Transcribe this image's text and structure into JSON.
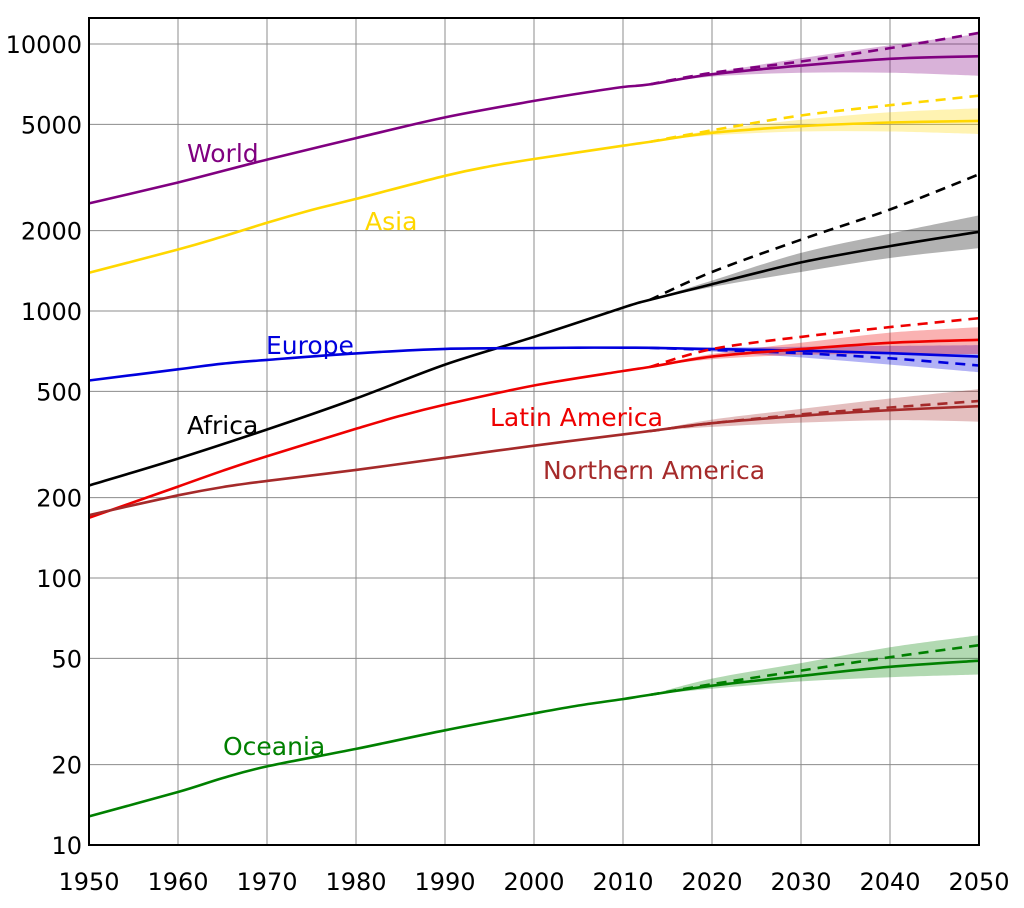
{
  "chart_data": {
    "type": "line",
    "title": "",
    "xlabel": "",
    "ylabel": "",
    "yscale": "log",
    "xlim": [
      1950,
      2050
    ],
    "ylim": [
      10,
      13000
    ],
    "grid": true,
    "legend": "inline labels",
    "x_ticks": [
      "1950",
      "1960",
      "1970",
      "1980",
      "1990",
      "2000",
      "2010",
      "2020",
      "2030",
      "2040",
      "2050"
    ],
    "y_ticks": [
      {
        "value": 10,
        "label": "10"
      },
      {
        "value": 20,
        "label": "20"
      },
      {
        "value": 50,
        "label": "50"
      },
      {
        "value": 100,
        "label": "100"
      },
      {
        "value": 200,
        "label": "200"
      },
      {
        "value": 500,
        "label": "500"
      },
      {
        "value": 1000,
        "label": "1000"
      },
      {
        "value": 2000,
        "label": "2000"
      },
      {
        "value": 5000,
        "label": "5000"
      },
      {
        "value": 10000,
        "label": "10000"
      }
    ],
    "series": [
      {
        "name": "World",
        "color": "#800080",
        "x": [
          1950,
          1960,
          1970,
          1980,
          1990,
          2000,
          2005,
          2010,
          2013
        ],
        "values": [
          2530,
          3030,
          3690,
          4440,
          5310,
          6120,
          6520,
          6900,
          7060
        ],
        "projection_x": [
          2013,
          2020,
          2030,
          2040,
          2050
        ],
        "projection_median": [
          7060,
          7700,
          8300,
          8800,
          9000
        ],
        "projection_high": [
          7060,
          7800,
          8850,
          9900,
          10900
        ],
        "projection_low": [
          7060,
          7550,
          7800,
          7800,
          7600
        ],
        "projection_dashed": [
          7060,
          7800,
          8600,
          9650,
          11000
        ]
      },
      {
        "name": "Asia",
        "color": "#ffd700",
        "x": [
          1950,
          1960,
          1965,
          1970,
          1975,
          1980,
          1990,
          1995,
          2000,
          2010,
          2013
        ],
        "values": [
          1390,
          1700,
          1900,
          2140,
          2390,
          2630,
          3210,
          3480,
          3710,
          4160,
          4300
        ],
        "projection_x": [
          2013,
          2020,
          2030,
          2040,
          2050
        ],
        "projection_median": [
          4300,
          4650,
          4920,
          5080,
          5150
        ],
        "projection_high": [
          4300,
          4750,
          5200,
          5550,
          5750
        ],
        "projection_low": [
          4300,
          4550,
          4700,
          4700,
          4600
        ],
        "projection_dashed": [
          4300,
          4750,
          5400,
          5900,
          6400
        ]
      },
      {
        "name": "Africa",
        "color": "#000000",
        "x": [
          1950,
          1960,
          1970,
          1980,
          1990,
          2000,
          2010,
          2013
        ],
        "values": [
          222,
          280,
          360,
          470,
          630,
          800,
          1030,
          1100
        ],
        "projection_x": [
          2013,
          2020,
          2030,
          2040,
          2050
        ],
        "projection_median": [
          1100,
          1260,
          1520,
          1750,
          1980
        ],
        "projection_high": [
          1100,
          1300,
          1650,
          1950,
          2280
        ],
        "projection_low": [
          1100,
          1230,
          1400,
          1580,
          1720
        ],
        "projection_dashed": [
          1100,
          1400,
          1850,
          2400,
          3250
        ]
      },
      {
        "name": "Europe",
        "color": "#0000dd",
        "x": [
          1950,
          1960,
          1965,
          1970,
          1980,
          1990,
          2000,
          2005,
          2010,
          2013
        ],
        "values": [
          549,
          605,
          635,
          656,
          694,
          721,
          726,
          729,
          729,
          728
        ],
        "projection_x": [
          2013,
          2020,
          2030,
          2040,
          2050
        ],
        "projection_median": [
          728,
          720,
          710,
          695,
          675
        ],
        "projection_high": [
          728,
          730,
          735,
          740,
          745
        ],
        "projection_low": [
          728,
          705,
          670,
          630,
          590
        ],
        "projection_dashed": [
          728,
          715,
          695,
          665,
          625
        ]
      },
      {
        "name": "Latin America",
        "color": "#ee0000",
        "x": [
          1950,
          1960,
          1965,
          1970,
          1980,
          1985,
          1990,
          2000,
          2010,
          2013
        ],
        "values": [
          168,
          220,
          252,
          286,
          362,
          405,
          446,
          526,
          596,
          617
        ],
        "projection_x": [
          2013,
          2020,
          2030,
          2040,
          2050
        ],
        "projection_median": [
          617,
          675,
          720,
          760,
          780
        ],
        "projection_high": [
          617,
          690,
          760,
          830,
          870
        ],
        "projection_low": [
          617,
          660,
          685,
          690,
          690
        ],
        "projection_dashed": [
          617,
          720,
          800,
          870,
          940
        ]
      },
      {
        "name": "Northern America",
        "color": "#a52a2a",
        "x": [
          1950,
          1960,
          1965,
          1970,
          1980,
          1990,
          2000,
          2010,
          2013
        ],
        "values": [
          172,
          204,
          219,
          231,
          254,
          282,
          313,
          345,
          355
        ],
        "projection_x": [
          2013,
          2020,
          2030,
          2040,
          2050
        ],
        "projection_median": [
          355,
          380,
          405,
          425,
          440
        ],
        "projection_high": [
          355,
          392,
          430,
          470,
          510
        ],
        "projection_low": [
          355,
          368,
          382,
          390,
          385
        ],
        "projection_dashed": [
          355,
          380,
          410,
          435,
          460
        ]
      },
      {
        "name": "Oceania",
        "color": "#008000",
        "x": [
          1950,
          1960,
          1965,
          1970,
          1980,
          1990,
          2000,
          2005,
          2010,
          2013
        ],
        "values": [
          12.8,
          15.8,
          17.8,
          19.7,
          22.9,
          26.9,
          31.1,
          33.3,
          35.2,
          36.5
        ],
        "projection_x": [
          2013,
          2020,
          2030,
          2040,
          2050
        ],
        "projection_median": [
          36.5,
          39.5,
          43,
          46.5,
          49
        ],
        "projection_high": [
          36.5,
          42,
          48,
          55,
          61
        ],
        "projection_low": [
          36.5,
          38.5,
          41,
          42.5,
          43.5
        ],
        "projection_dashed": [
          36.5,
          40,
          45,
          50.5,
          56
        ]
      }
    ]
  },
  "labels": {
    "world": "World",
    "asia": "Asia",
    "africa": "Africa",
    "europe": "Europe",
    "latin_america": "Latin America",
    "northern_america": "Northern America",
    "oceania": "Oceania"
  }
}
